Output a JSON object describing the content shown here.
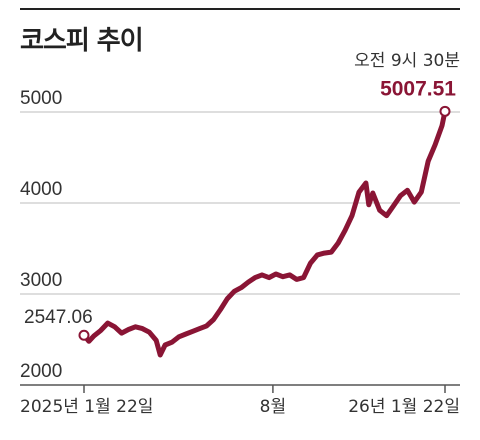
{
  "header": {
    "title": "코스피 추이",
    "timestamp": "오전 9시 30분"
  },
  "colors": {
    "line": "#8a1535",
    "grid": "#bdbdbd",
    "text": "#333333"
  },
  "chart_data": {
    "type": "line",
    "title": "코스피 추이",
    "xlabel": "",
    "ylabel": "",
    "ylim": [
      2000,
      5100
    ],
    "yticks": [
      2000,
      3000,
      4000,
      5000
    ],
    "ytick_labels": [
      "2000",
      "3000",
      "4000",
      "5000"
    ],
    "grid": "horizontal",
    "xticks": [
      {
        "x": "2025-01-22",
        "label": "2025년 1월 22일"
      },
      {
        "x": "2025-08-01",
        "label": "8월"
      },
      {
        "x": "2026-01-22",
        "label": "26년 1월 22일"
      }
    ],
    "series": [
      {
        "name": "",
        "x": [
          "2025-01-22",
          "2025-01-27",
          "2025-02-01",
          "2025-02-08",
          "2025-02-15",
          "2025-02-22",
          "2025-03-01",
          "2025-03-08",
          "2025-03-15",
          "2025-03-22",
          "2025-03-29",
          "2025-04-05",
          "2025-04-09",
          "2025-04-14",
          "2025-04-21",
          "2025-04-28",
          "2025-05-05",
          "2025-05-12",
          "2025-05-19",
          "2025-05-26",
          "2025-06-02",
          "2025-06-09",
          "2025-06-16",
          "2025-06-23",
          "2025-06-30",
          "2025-07-07",
          "2025-07-14",
          "2025-07-21",
          "2025-07-28",
          "2025-08-04",
          "2025-08-11",
          "2025-08-18",
          "2025-08-25",
          "2025-09-01",
          "2025-09-08",
          "2025-09-15",
          "2025-09-22",
          "2025-09-29",
          "2025-10-06",
          "2025-10-13",
          "2025-10-20",
          "2025-10-27",
          "2025-11-03",
          "2025-11-06",
          "2025-11-10",
          "2025-11-17",
          "2025-11-24",
          "2025-12-01",
          "2025-12-08",
          "2025-12-15",
          "2025-12-22",
          "2025-12-29",
          "2026-01-05",
          "2026-01-12",
          "2026-01-19",
          "2026-01-22"
        ],
        "values": [
          2547.06,
          2480,
          2540,
          2600,
          2680,
          2640,
          2570,
          2610,
          2640,
          2620,
          2580,
          2490,
          2330,
          2440,
          2470,
          2530,
          2560,
          2590,
          2620,
          2650,
          2720,
          2830,
          2950,
          3030,
          3070,
          3130,
          3180,
          3210,
          3180,
          3220,
          3190,
          3210,
          3160,
          3180,
          3340,
          3430,
          3450,
          3460,
          3560,
          3700,
          3860,
          4120,
          4220,
          3980,
          4110,
          3920,
          3860,
          3970,
          4080,
          4140,
          4010,
          4120,
          4460,
          4640,
          4850,
          5007.51
        ]
      }
    ],
    "annotations": [
      {
        "x": "2025-01-22",
        "value": 2547.06,
        "label": "2547.06"
      },
      {
        "x": "2026-01-22",
        "value": 5007.51,
        "label": "5007.51"
      }
    ]
  }
}
